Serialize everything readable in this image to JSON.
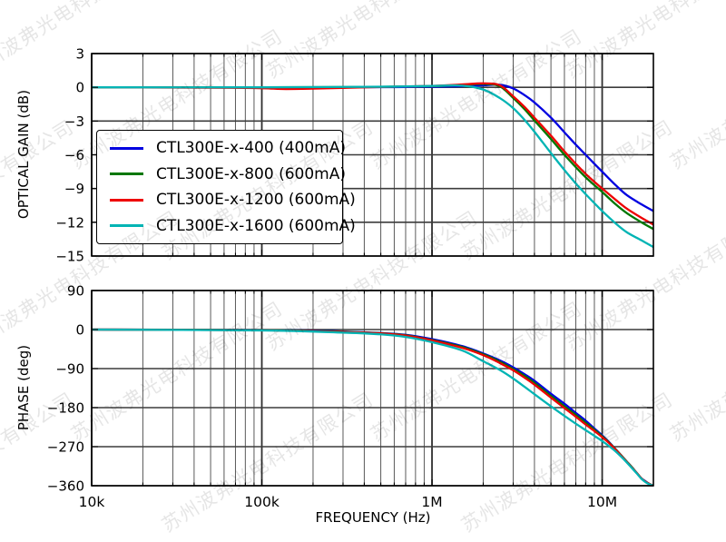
{
  "watermark": {
    "text": "苏州波弗光电科技有限公司",
    "color": "rgba(0,0,0,0.10)",
    "angle_deg": -32
  },
  "axes_style": {
    "background": "#ffffff",
    "spine_color": "#000000",
    "grid_major_v_color": "#2f2f2f",
    "grid_minor_v_color": "#5a5a5a",
    "grid_h_color": "#3c3c3c",
    "tick_color": "#000000",
    "line_width": 2.3
  },
  "chart_data": [
    {
      "type": "line",
      "title": "",
      "xlabel": "",
      "ylabel": "OPTICAL GAIN (dB)",
      "xscale": "log",
      "xlim": [
        10000,
        20000000
      ],
      "ylim": [
        -15,
        3
      ],
      "yticks": [
        3,
        0,
        -3,
        -6,
        -9,
        -12,
        -15
      ],
      "xtick_labels": [
        {
          "value": 10000,
          "label": "10k"
        },
        {
          "value": 100000,
          "label": "100k"
        },
        {
          "value": 1000000,
          "label": "1M"
        },
        {
          "value": 10000000,
          "label": "10M"
        }
      ],
      "show_xtick_labels": false,
      "grid": "both",
      "legend_position": "upper-left",
      "series": [
        {
          "name": "CTL300E-x-400 (400mA)",
          "color": "#0000e0",
          "points": [
            [
              10000,
              0
            ],
            [
              30000,
              0
            ],
            [
              100000,
              0
            ],
            [
              300000,
              0
            ],
            [
              600000,
              0.02
            ],
            [
              1000000,
              0.05
            ],
            [
              1500000,
              0.1
            ],
            [
              2000000,
              0.18
            ],
            [
              2500000,
              0.22
            ],
            [
              3000000,
              -0.1
            ],
            [
              3500000,
              -0.7
            ],
            [
              4000000,
              -1.35
            ],
            [
              5000000,
              -2.7
            ],
            [
              6000000,
              -4.0
            ],
            [
              7000000,
              -5.1
            ],
            [
              8000000,
              -6.0
            ],
            [
              9000000,
              -6.8
            ],
            [
              10000000,
              -7.5
            ],
            [
              12000000,
              -8.7
            ],
            [
              14000000,
              -9.6
            ],
            [
              17000000,
              -10.4
            ],
            [
              20000000,
              -11.0
            ]
          ]
        },
        {
          "name": "CTL300E-x-800 (600mA)",
          "color": "#007700",
          "points": [
            [
              10000,
              0
            ],
            [
              100000,
              0
            ],
            [
              300000,
              0.02
            ],
            [
              1000000,
              0.1
            ],
            [
              1500000,
              0.22
            ],
            [
              2000000,
              0.3
            ],
            [
              2500000,
              0.1
            ],
            [
              3000000,
              -0.95
            ],
            [
              3500000,
              -1.95
            ],
            [
              4000000,
              -2.95
            ],
            [
              5000000,
              -4.6
            ],
            [
              6000000,
              -6.0
            ],
            [
              7000000,
              -7.1
            ],
            [
              8000000,
              -8.0
            ],
            [
              9000000,
              -8.7
            ],
            [
              10000000,
              -9.3
            ],
            [
              12000000,
              -10.4
            ],
            [
              14000000,
              -11.2
            ],
            [
              17000000,
              -12.0
            ],
            [
              20000000,
              -12.6
            ]
          ]
        },
        {
          "name": "CTL300E-x-1200 (600mA)",
          "color": "#ee0000",
          "points": [
            [
              10000,
              0
            ],
            [
              80000,
              -0.05
            ],
            [
              130000,
              -0.15
            ],
            [
              200000,
              -0.12
            ],
            [
              400000,
              0
            ],
            [
              1000000,
              0.12
            ],
            [
              1500000,
              0.25
            ],
            [
              2000000,
              0.35
            ],
            [
              2500000,
              0.18
            ],
            [
              3000000,
              -0.8
            ],
            [
              3500000,
              -1.75
            ],
            [
              4000000,
              -2.7
            ],
            [
              5000000,
              -4.3
            ],
            [
              6000000,
              -5.7
            ],
            [
              7000000,
              -6.8
            ],
            [
              8000000,
              -7.7
            ],
            [
              9000000,
              -8.4
            ],
            [
              10000000,
              -9.0
            ],
            [
              12000000,
              -10.0
            ],
            [
              14000000,
              -10.8
            ],
            [
              17000000,
              -11.6
            ],
            [
              20000000,
              -12.2
            ]
          ]
        },
        {
          "name": "CTL300E-x-1600 (600mA)",
          "color": "#00b4b4",
          "points": [
            [
              10000,
              0
            ],
            [
              100000,
              0
            ],
            [
              500000,
              0.05
            ],
            [
              1000000,
              0.12
            ],
            [
              1500000,
              0.15
            ],
            [
              2000000,
              -0.2
            ],
            [
              2500000,
              -0.95
            ],
            [
              3000000,
              -1.85
            ],
            [
              3500000,
              -2.9
            ],
            [
              4000000,
              -3.95
            ],
            [
              5000000,
              -5.85
            ],
            [
              6000000,
              -7.35
            ],
            [
              7000000,
              -8.55
            ],
            [
              8000000,
              -9.5
            ],
            [
              9000000,
              -10.3
            ],
            [
              10000000,
              -11.0
            ],
            [
              12000000,
              -12.1
            ],
            [
              14000000,
              -12.9
            ],
            [
              17000000,
              -13.6
            ],
            [
              20000000,
              -14.2
            ]
          ]
        }
      ]
    },
    {
      "type": "line",
      "title": "",
      "xlabel": "FREQUENCY (Hz)",
      "ylabel": "PHASE (deg)",
      "xscale": "log",
      "xlim": [
        10000,
        20000000
      ],
      "ylim": [
        -360,
        90
      ],
      "yticks": [
        90,
        0,
        -90,
        -180,
        -270,
        -360
      ],
      "xtick_labels": [
        {
          "value": 10000,
          "label": "10k"
        },
        {
          "value": 100000,
          "label": "100k"
        },
        {
          "value": 1000000,
          "label": "1M"
        },
        {
          "value": 10000000,
          "label": "10M"
        }
      ],
      "show_xtick_labels": true,
      "grid": "both",
      "series": [
        {
          "name": "CTL300E-x-400 (400mA)",
          "color": "#0000e0",
          "points": [
            [
              10000,
              0
            ],
            [
              50000,
              -0.5
            ],
            [
              100000,
              -1
            ],
            [
              200000,
              -2.5
            ],
            [
              300000,
              -4.5
            ],
            [
              500000,
              -8
            ],
            [
              700000,
              -12
            ],
            [
              1000000,
              -22
            ],
            [
              1500000,
              -38
            ],
            [
              2000000,
              -55
            ],
            [
              2500000,
              -71
            ],
            [
              3000000,
              -87
            ],
            [
              3500000,
              -103
            ],
            [
              4000000,
              -118
            ],
            [
              5000000,
              -148
            ],
            [
              6000000,
              -171
            ],
            [
              7000000,
              -192
            ],
            [
              8000000,
              -210
            ],
            [
              9000000,
              -228
            ],
            [
              10000000,
              -244
            ],
            [
              11000000,
              -260
            ],
            [
              12000000,
              -276
            ],
            [
              13000000,
              -291
            ],
            [
              14000000,
              -305
            ],
            [
              15000000,
              -318
            ],
            [
              16000000,
              -331
            ],
            [
              17000000,
              -343
            ],
            [
              18000000,
              -350
            ],
            [
              19000000,
              -356
            ],
            [
              20000000,
              -360
            ]
          ]
        },
        {
          "name": "CTL300E-x-800 (600mA)",
          "color": "#007700",
          "points": [
            [
              10000,
              0
            ],
            [
              100000,
              -1.2
            ],
            [
              300000,
              -5
            ],
            [
              500000,
              -8.5
            ],
            [
              700000,
              -13
            ],
            [
              1000000,
              -24
            ],
            [
              1500000,
              -40
            ],
            [
              2000000,
              -57
            ],
            [
              2500000,
              -74
            ],
            [
              3000000,
              -91
            ],
            [
              3500000,
              -107
            ],
            [
              4000000,
              -123
            ],
            [
              5000000,
              -153
            ],
            [
              6000000,
              -177
            ],
            [
              7000000,
              -197
            ],
            [
              8000000,
              -215
            ],
            [
              9000000,
              -231
            ],
            [
              10000000,
              -246
            ],
            [
              11000000,
              -261
            ],
            [
              12000000,
              -276
            ],
            [
              13000000,
              -291
            ],
            [
              14000000,
              -305
            ],
            [
              15000000,
              -318
            ],
            [
              16000000,
              -331
            ],
            [
              17000000,
              -343
            ],
            [
              18000000,
              -351
            ],
            [
              19000000,
              -356
            ],
            [
              20000000,
              -360
            ]
          ]
        },
        {
          "name": "CTL300E-x-1200 (600mA)",
          "color": "#ee0000",
          "points": [
            [
              10000,
              0
            ],
            [
              100000,
              -1.5
            ],
            [
              300000,
              -5.5
            ],
            [
              500000,
              -9
            ],
            [
              700000,
              -14
            ],
            [
              1000000,
              -25
            ],
            [
              1500000,
              -42
            ],
            [
              2000000,
              -59
            ],
            [
              2500000,
              -77
            ],
            [
              3000000,
              -94
            ],
            [
              3500000,
              -111
            ],
            [
              4000000,
              -127
            ],
            [
              5000000,
              -157
            ],
            [
              6000000,
              -181
            ],
            [
              7000000,
              -201
            ],
            [
              8000000,
              -219
            ],
            [
              9000000,
              -234
            ],
            [
              10000000,
              -248
            ],
            [
              11000000,
              -262
            ],
            [
              12000000,
              -277
            ],
            [
              13000000,
              -292
            ],
            [
              14000000,
              -306
            ],
            [
              15000000,
              -319
            ],
            [
              16000000,
              -331
            ],
            [
              17000000,
              -343
            ],
            [
              18000000,
              -351
            ],
            [
              19000000,
              -356
            ],
            [
              20000000,
              -360
            ]
          ]
        },
        {
          "name": "CTL300E-x-1600 (600mA)",
          "color": "#00b4b4",
          "points": [
            [
              10000,
              0
            ],
            [
              100000,
              -2
            ],
            [
              300000,
              -7
            ],
            [
              500000,
              -11
            ],
            [
              700000,
              -17
            ],
            [
              1000000,
              -29
            ],
            [
              1500000,
              -48
            ],
            [
              2000000,
              -73
            ],
            [
              2500000,
              -93
            ],
            [
              3000000,
              -113
            ],
            [
              3500000,
              -132
            ],
            [
              4000000,
              -149
            ],
            [
              5000000,
              -177
            ],
            [
              6000000,
              -199
            ],
            [
              7000000,
              -217
            ],
            [
              8000000,
              -232
            ],
            [
              9000000,
              -245
            ],
            [
              10000000,
              -257
            ],
            [
              11000000,
              -269
            ],
            [
              12000000,
              -281
            ],
            [
              13000000,
              -294
            ],
            [
              14000000,
              -307
            ],
            [
              15000000,
              -320
            ],
            [
              16000000,
              -332
            ],
            [
              17000000,
              -344
            ],
            [
              18000000,
              -352
            ],
            [
              19000000,
              -357
            ],
            [
              20000000,
              -360
            ]
          ]
        }
      ]
    }
  ]
}
